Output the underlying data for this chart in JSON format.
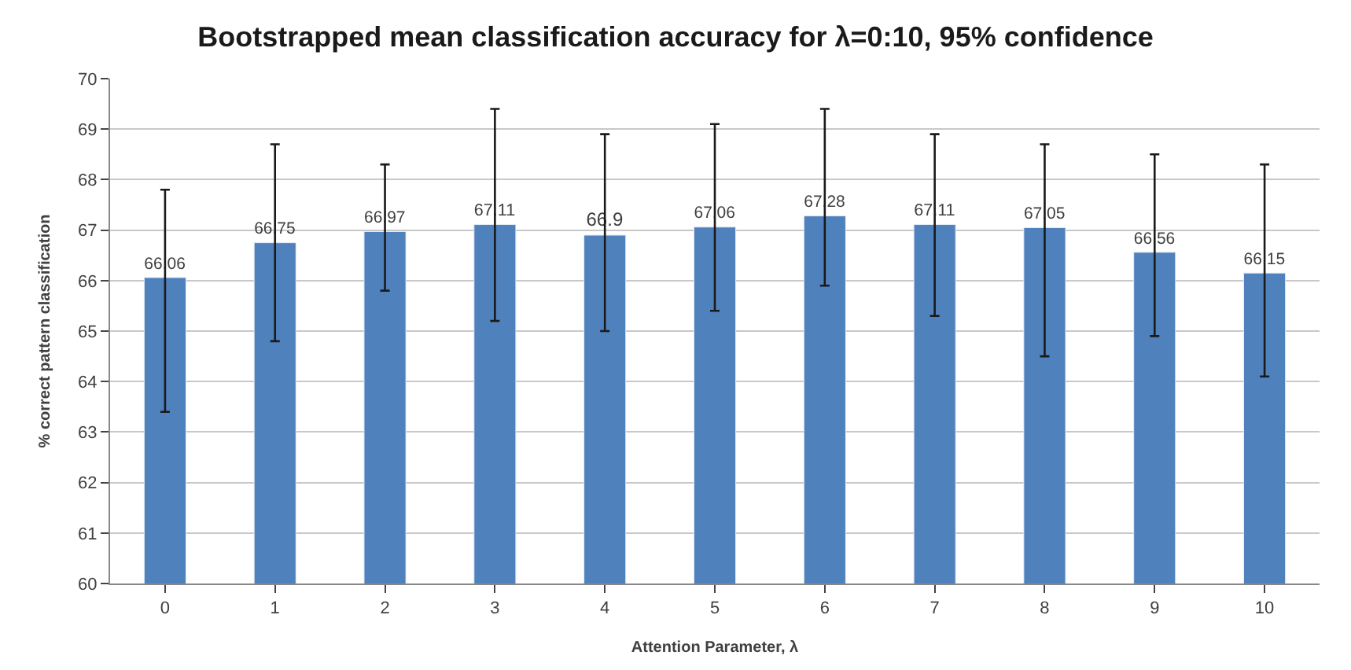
{
  "chart_data": {
    "type": "bar",
    "title": "Bootstrapped mean classification accuracy for λ=0:10, 95% confidence",
    "xlabel": "Attention Parameter, λ",
    "ylabel": "% correct pattern classification",
    "categories": [
      "0",
      "1",
      "2",
      "3",
      "4",
      "5",
      "6",
      "7",
      "8",
      "9",
      "10"
    ],
    "values": [
      66.06,
      66.75,
      66.97,
      67.11,
      66.9,
      67.06,
      67.28,
      67.11,
      67.05,
      66.56,
      66.15
    ],
    "errors": [
      [
        63.4,
        67.8
      ],
      [
        64.8,
        68.7
      ],
      [
        65.8,
        68.3
      ],
      [
        65.2,
        69.4
      ],
      [
        65.0,
        68.9
      ],
      [
        65.4,
        69.1
      ],
      [
        65.9,
        69.4
      ],
      [
        65.3,
        68.9
      ],
      [
        64.5,
        68.7
      ],
      [
        64.9,
        68.5
      ],
      [
        64.1,
        68.3
      ]
    ],
    "color": "#4f81bd",
    "data_labels": true,
    "ylim": [
      60,
      70
    ],
    "yticks": [
      60,
      61,
      62,
      63,
      64,
      65,
      66,
      67,
      68,
      69,
      70
    ],
    "grid": "y",
    "legend": false
  }
}
